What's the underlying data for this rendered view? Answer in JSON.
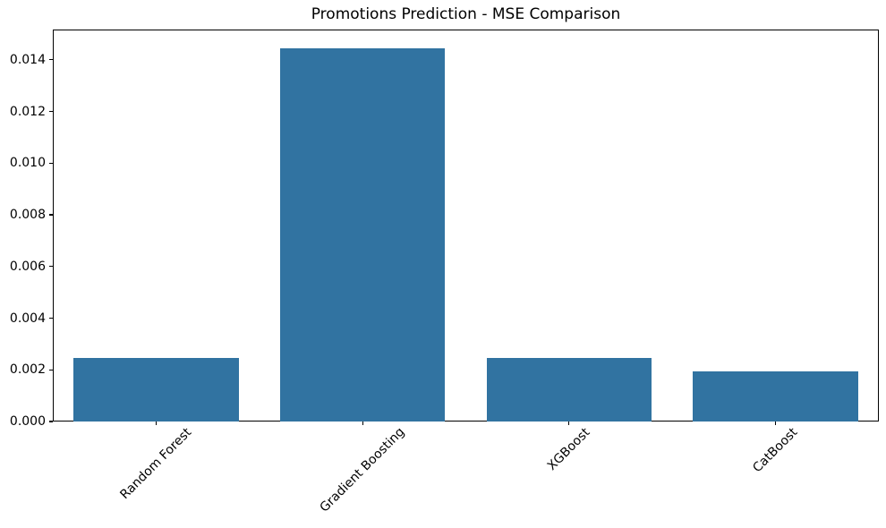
{
  "figure": {
    "background_color": "#ffffff",
    "text_color": "#000000",
    "spine_color": "#000000"
  },
  "chart_data": {
    "type": "bar",
    "title": "Promotions Prediction - MSE Comparison",
    "categories": [
      "Random Forest",
      "Gradient Boosting",
      "XGBoost",
      "CatBoost"
    ],
    "values": [
      0.00247,
      0.01445,
      0.00247,
      0.00195
    ],
    "xlabel": "",
    "ylabel": "",
    "ylim": [
      0,
      0.01517
    ],
    "yticks": [
      0.0,
      0.002,
      0.004,
      0.006,
      0.008,
      0.01,
      0.012,
      0.014
    ],
    "ytick_decimals": 3,
    "x_tick_rotation_deg": 45,
    "bar_color": "#3173a1",
    "bar_width_fraction": 0.8,
    "grid": false,
    "legend_position": "none"
  }
}
